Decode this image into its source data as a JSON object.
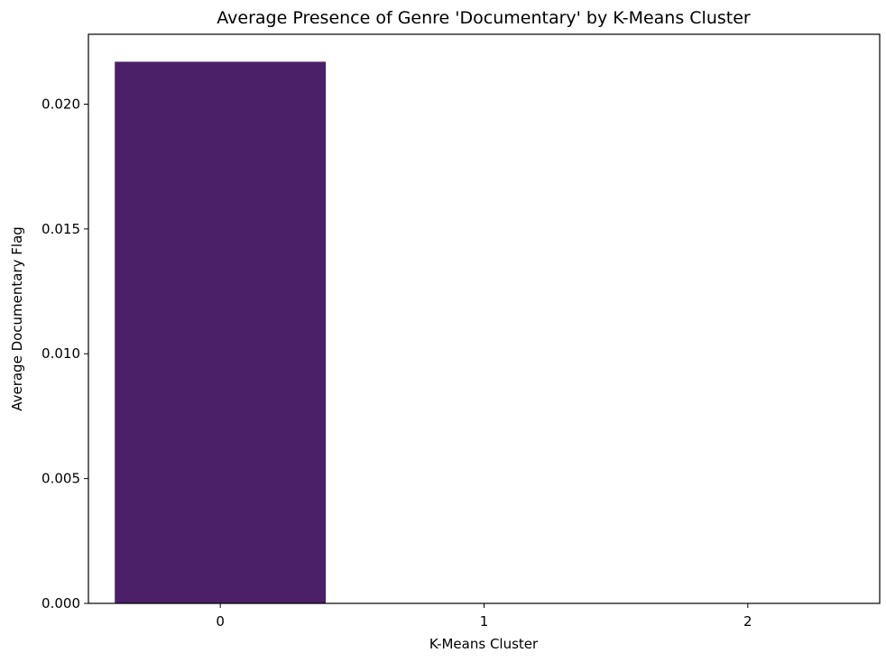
{
  "chart_data": {
    "type": "bar",
    "title": "Average Presence of Genre 'Documentary' by K-Means Cluster",
    "xlabel": "K-Means Cluster",
    "ylabel": "Average Documentary Flag",
    "categories": [
      "0",
      "1",
      "2"
    ],
    "values": [
      0.0217,
      0.0,
      0.0
    ],
    "ylim": [
      0,
      0.0228
    ],
    "yticks": [
      0.0,
      0.005,
      0.01,
      0.015,
      0.02
    ],
    "ytick_labels": [
      "0.000",
      "0.005",
      "0.010",
      "0.015",
      "0.020"
    ],
    "bar_color": "#4c1f69",
    "grid": false,
    "legend": "none"
  }
}
